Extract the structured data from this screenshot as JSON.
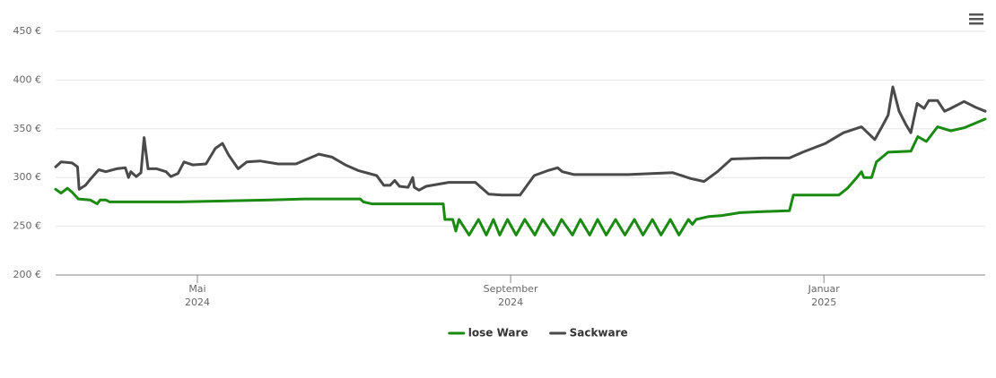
{
  "chart_data": {
    "type": "line",
    "xlim": [
      3.19,
      15.06
    ],
    "ylim": [
      200,
      450
    ],
    "xticks": [
      {
        "value": 5,
        "label": [
          "Mai",
          "2024"
        ]
      },
      {
        "value": 9,
        "label": [
          "September",
          "2024"
        ]
      },
      {
        "value": 13,
        "label": [
          "Januar",
          "2025"
        ]
      }
    ],
    "yticks": [
      {
        "value": 200,
        "label": "200 €"
      },
      {
        "value": 250,
        "label": "250 €"
      },
      {
        "value": 300,
        "label": "300 €"
      },
      {
        "value": 350,
        "label": "350 €"
      },
      {
        "value": 400,
        "label": "400 €"
      },
      {
        "value": 450,
        "label": "450 €"
      }
    ],
    "grid": true,
    "legend": "bottom",
    "series": [
      {
        "name": "lose Ware",
        "color": "#1a8a12",
        "x": [
          3.19,
          3.26,
          3.34,
          3.4,
          3.48,
          3.63,
          3.72,
          3.76,
          3.83,
          3.88,
          4.77,
          5.92,
          6.37,
          7.08,
          7.12,
          7.23,
          8.14,
          8.16,
          8.26,
          8.3,
          8.34,
          8.47,
          8.59,
          8.69,
          8.78,
          8.86,
          8.96,
          9.07,
          9.18,
          9.31,
          9.41,
          9.55,
          9.65,
          9.79,
          9.89,
          10.01,
          10.11,
          10.22,
          10.34,
          10.46,
          10.58,
          10.69,
          10.81,
          10.92,
          11.04,
          11.15,
          11.27,
          11.32,
          11.37,
          11.53,
          11.7,
          11.93,
          12.22,
          12.56,
          12.61,
          13.19,
          13.3,
          13.42,
          13.48,
          13.51,
          13.61,
          13.67,
          13.82,
          14.11,
          14.2,
          14.31,
          14.45,
          14.62,
          14.79,
          15.06
        ],
        "values": [
          288,
          284,
          289,
          285,
          278,
          277,
          273,
          277,
          277,
          275,
          275,
          277,
          278,
          278,
          275,
          273,
          273,
          257,
          257,
          245,
          257,
          241,
          257,
          241,
          257,
          241,
          257,
          241,
          257,
          241,
          257,
          241,
          257,
          241,
          257,
          241,
          257,
          241,
          257,
          241,
          257,
          241,
          257,
          241,
          257,
          241,
          257,
          252,
          257,
          260,
          261,
          264,
          265,
          266,
          282,
          282,
          289,
          300,
          306,
          300,
          300,
          316,
          326,
          327,
          342,
          337,
          352,
          348,
          351,
          360
        ]
      },
      {
        "name": "Sackware",
        "color": "#4a4a4a",
        "x": [
          3.19,
          3.26,
          3.4,
          3.47,
          3.49,
          3.57,
          3.63,
          3.74,
          3.83,
          3.97,
          4.08,
          4.12,
          4.15,
          4.22,
          4.28,
          4.32,
          4.37,
          4.48,
          4.6,
          4.66,
          4.75,
          4.83,
          4.94,
          5.11,
          5.23,
          5.32,
          5.4,
          5.52,
          5.63,
          5.8,
          6.03,
          6.26,
          6.55,
          6.72,
          6.89,
          7.06,
          7.29,
          7.38,
          7.46,
          7.52,
          7.58,
          7.69,
          7.75,
          7.77,
          7.83,
          7.92,
          8.21,
          8.55,
          8.72,
          8.89,
          9.12,
          9.3,
          9.47,
          9.6,
          9.66,
          9.81,
          10.5,
          11.07,
          11.3,
          11.47,
          11.64,
          11.82,
          12.22,
          12.56,
          12.73,
          13.02,
          13.25,
          13.48,
          13.65,
          13.74,
          13.82,
          13.88,
          13.96,
          14.05,
          14.11,
          14.19,
          14.28,
          14.34,
          14.45,
          14.54,
          14.62,
          14.79,
          14.94,
          15.06
        ],
        "values": [
          311,
          316,
          315,
          311,
          288,
          292,
          298,
          308,
          306,
          309,
          310,
          300,
          306,
          301,
          305,
          341,
          309,
          309,
          306,
          301,
          304,
          316,
          313,
          314,
          330,
          335,
          323,
          309,
          316,
          317,
          314,
          314,
          324,
          321,
          313,
          307,
          302,
          292,
          292,
          297,
          291,
          290,
          300,
          290,
          287,
          291,
          295,
          295,
          283,
          282,
          282,
          302,
          307,
          310,
          306,
          303,
          303,
          305,
          299,
          296,
          306,
          319,
          320,
          320,
          326,
          335,
          346,
          352,
          339,
          352,
          364,
          393,
          368,
          354,
          346,
          376,
          371,
          379,
          379,
          368,
          371,
          378,
          372,
          368
        ]
      }
    ]
  }
}
